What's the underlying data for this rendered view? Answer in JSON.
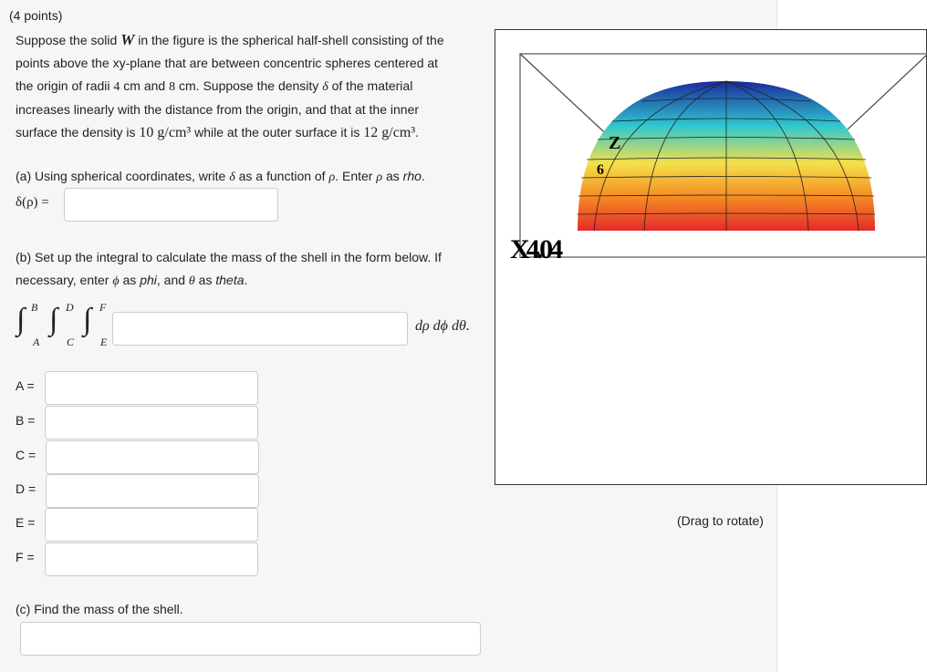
{
  "points": "(4 points)",
  "intro": {
    "line1a": "Suppose the solid ",
    "W": "W",
    "line1b": " in the figure is the spherical half-shell consisting of the",
    "line2": "points above the xy-plane that are between concentric spheres centered at",
    "line3a": "the origin of radii ",
    "r1": "4",
    "line3b": " cm and ",
    "r2": "8",
    "line3c": " cm. Suppose the density ",
    "delta": "δ",
    "line3d": " of the material",
    "line4": "increases linearly with the distance from the origin, and that at the inner",
    "line5a": "surface the density is ",
    "d1": "10 g/cm³",
    "line5b": " while at the outer surface it is ",
    "d2": "12 g/cm³",
    "line5c": "."
  },
  "part_a": {
    "text1": "(a) Using spherical coordinates, write ",
    "delta": "δ",
    "text2": " as a function of ",
    "rho": "ρ",
    "text3": ". Enter ",
    "rho2": "ρ",
    "text4": " as ",
    "rhoword": "rho",
    "text5": ".",
    "label": "δ(ρ) =",
    "value": ""
  },
  "part_b": {
    "line1": "(b) Set up the integral to calculate the mass of the shell in the form below. If",
    "line2a": "necessary, enter ",
    "phi": "ϕ",
    "line2b": " as ",
    "phiword": "phi",
    "line2c": ", and ",
    "theta": "θ",
    "line2d": " as ",
    "thetaword": "theta",
    "line2e": ".",
    "limits": {
      "A": "A",
      "B": "B",
      "C": "C",
      "D": "D",
      "E": "E",
      "F": "F"
    },
    "differentials": "dρ dϕ dθ.",
    "integrand": "",
    "fields": [
      {
        "label": "A =",
        "value": ""
      },
      {
        "label": "B =",
        "value": ""
      },
      {
        "label": "C =",
        "value": ""
      },
      {
        "label": "D =",
        "value": ""
      },
      {
        "label": "E =",
        "value": ""
      },
      {
        "label": "F =",
        "value": ""
      }
    ]
  },
  "part_c": {
    "text": "(c) Find the mass of the shell.",
    "value": ""
  },
  "figure": {
    "axis_z": "Z",
    "tick_6": "6",
    "x_label": "X4.04",
    "caption": "(Drag to rotate)",
    "colors": [
      "#1a2a9c",
      "#2fc8d0",
      "#f4e04a",
      "#f58a22",
      "#e52a2a"
    ]
  }
}
